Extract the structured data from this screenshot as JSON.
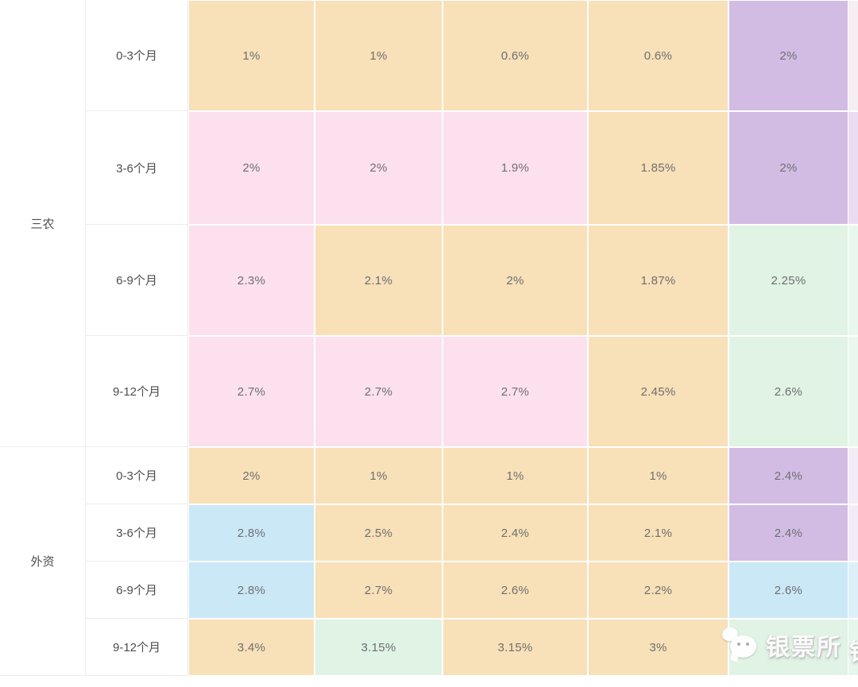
{
  "colors": {
    "orange": "#f8e0b8",
    "pink": "#fce0ee",
    "purple": "#d2bce4",
    "mint": "#e0f3e5",
    "blue": "#cbe8f7",
    "value_text": "#6f6f6f",
    "label_text": "#4d4d4d",
    "grid_line": "#ececec"
  },
  "table": {
    "sections": [
      {
        "label": "三农",
        "rows": [
          {
            "period": "0-3个月",
            "cells": [
              [
                "1%",
                "orange"
              ],
              [
                "1%",
                "orange"
              ],
              [
                "0.6%",
                "orange"
              ],
              [
                "0.6%",
                "orange"
              ],
              [
                "2%",
                "purple"
              ]
            ],
            "sliver": "#f6eef3"
          },
          {
            "period": "3-6个月",
            "cells": [
              [
                "2%",
                "pink"
              ],
              [
                "2%",
                "pink"
              ],
              [
                "1.9%",
                "pink"
              ],
              [
                "1.85%",
                "orange"
              ],
              [
                "2%",
                "purple"
              ]
            ],
            "sliver": "#ecdcf3"
          },
          {
            "period": "6-9个月",
            "cells": [
              [
                "2.3%",
                "pink"
              ],
              [
                "2.1%",
                "orange"
              ],
              [
                "2%",
                "orange"
              ],
              [
                "1.87%",
                "orange"
              ],
              [
                "2.25%",
                "mint"
              ]
            ],
            "sliver": "#eaf7ee"
          },
          {
            "period": "9-12个月",
            "cells": [
              [
                "2.7%",
                "pink"
              ],
              [
                "2.7%",
                "pink"
              ],
              [
                "2.7%",
                "pink"
              ],
              [
                "2.45%",
                "orange"
              ],
              [
                "2.6%",
                "mint"
              ]
            ],
            "sliver": "#eaf7ee"
          }
        ]
      },
      {
        "label": "外资",
        "rows": [
          {
            "period": "0-3个月",
            "cells": [
              [
                "2%",
                "orange"
              ],
              [
                "1%",
                "orange"
              ],
              [
                "1%",
                "orange"
              ],
              [
                "1%",
                "orange"
              ],
              [
                "2.4%",
                "purple"
              ]
            ],
            "sliver": "#f3ecf7"
          },
          {
            "period": "3-6个月",
            "cells": [
              [
                "2.8%",
                "blue"
              ],
              [
                "2.5%",
                "orange"
              ],
              [
                "2.4%",
                "orange"
              ],
              [
                "2.1%",
                "orange"
              ],
              [
                "2.4%",
                "purple"
              ]
            ],
            "sliver": "#f3ecf7"
          },
          {
            "period": "6-9个月",
            "cells": [
              [
                "2.8%",
                "blue"
              ],
              [
                "2.7%",
                "orange"
              ],
              [
                "2.6%",
                "orange"
              ],
              [
                "2.2%",
                "orange"
              ],
              [
                "2.6%",
                "blue"
              ]
            ],
            "sliver": "#ddf0fa"
          },
          {
            "period": "9-12个月",
            "cells": [
              [
                "3.4%",
                "orange"
              ],
              [
                "3.15%",
                "mint"
              ],
              [
                "3.15%",
                "orange"
              ],
              [
                "3%",
                "orange"
              ],
              [
                "",
                "mint"
              ]
            ],
            "sliver": "#e7f6ec"
          }
        ]
      }
    ]
  },
  "watermark": {
    "icon": "wechat-icon",
    "text": "银票所",
    "partial_text": "银"
  },
  "chart_data": {
    "type": "table",
    "row_group_column": [
      "三农",
      "外资"
    ],
    "period_column": [
      "0-3个月",
      "3-6个月",
      "6-9个月",
      "9-12个月"
    ],
    "rows": [
      {
        "group": "三农",
        "period": "0-3个月",
        "values": [
          "1%",
          "1%",
          "0.6%",
          "0.6%",
          "2%"
        ]
      },
      {
        "group": "三农",
        "period": "3-6个月",
        "values": [
          "2%",
          "2%",
          "1.9%",
          "1.85%",
          "2%"
        ]
      },
      {
        "group": "三农",
        "period": "6-9个月",
        "values": [
          "2.3%",
          "2.1%",
          "2%",
          "1.87%",
          "2.25%"
        ]
      },
      {
        "group": "三农",
        "period": "9-12个月",
        "values": [
          "2.7%",
          "2.7%",
          "2.7%",
          "2.45%",
          "2.6%"
        ]
      },
      {
        "group": "外资",
        "period": "0-3个月",
        "values": [
          "2%",
          "1%",
          "1%",
          "1%",
          "2.4%"
        ]
      },
      {
        "group": "外资",
        "period": "3-6个月",
        "values": [
          "2.8%",
          "2.5%",
          "2.4%",
          "2.1%",
          "2.4%"
        ]
      },
      {
        "group": "外资",
        "period": "6-9个月",
        "values": [
          "2.8%",
          "2.7%",
          "2.6%",
          "2.2%",
          "2.6%"
        ]
      },
      {
        "group": "外资",
        "period": "9-12个月",
        "values": [
          "3.4%",
          "3.15%",
          "3.15%",
          "3%",
          ""
        ]
      }
    ],
    "notes": "Column headers are cut off above the visible area; last value of 外资 9-12个月 is covered by the 银票所 watermark.",
    "cell_color_legend": [
      "orange",
      "pink",
      "purple",
      "mint",
      "blue"
    ],
    "grid": true,
    "title": ""
  }
}
